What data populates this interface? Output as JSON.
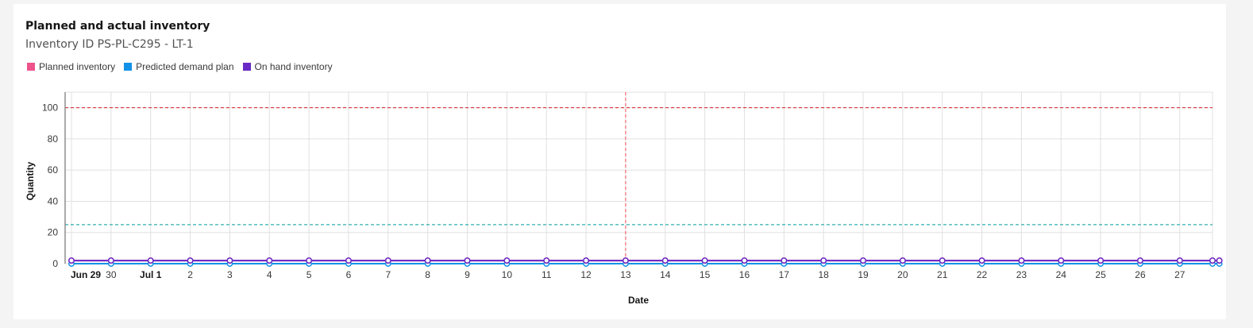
{
  "card": {
    "title": "Planned and actual inventory",
    "subtitle": "Inventory ID PS-PL-C295 - LT-1"
  },
  "legend": [
    {
      "label": "Planned inventory",
      "color": "#ee538b"
    },
    {
      "label": "Predicted demand plan",
      "color": "#1192e8"
    },
    {
      "label": "On hand inventory",
      "color": "#6929c4"
    }
  ],
  "chart_data": {
    "type": "line",
    "xlabel": "Date",
    "ylabel": "Quantity",
    "ylim": [
      0,
      110
    ],
    "yticks": [
      0,
      20,
      40,
      60,
      80,
      100
    ],
    "x_start": "Jun 29",
    "x_tick_labels": [
      {
        "label": "Jun 29",
        "bold": true
      },
      {
        "label": "30",
        "bold": false
      },
      {
        "label": "Jul 1",
        "bold": true
      },
      {
        "label": "2"
      },
      {
        "label": "3"
      },
      {
        "label": "4"
      },
      {
        "label": "5"
      },
      {
        "label": "6"
      },
      {
        "label": "7"
      },
      {
        "label": "8"
      },
      {
        "label": "9"
      },
      {
        "label": "10"
      },
      {
        "label": "11"
      },
      {
        "label": "12"
      },
      {
        "label": "13"
      },
      {
        "label": "14"
      },
      {
        "label": "15"
      },
      {
        "label": "16"
      },
      {
        "label": "17"
      },
      {
        "label": "18"
      },
      {
        "label": "19"
      },
      {
        "label": "20"
      },
      {
        "label": "21"
      },
      {
        "label": "22"
      },
      {
        "label": "23"
      },
      {
        "label": "24"
      },
      {
        "label": "25"
      },
      {
        "label": "26"
      },
      {
        "label": "27"
      }
    ],
    "series": [
      {
        "name": "Planned inventory",
        "color": "#ee538b",
        "values": [
          2,
          2,
          2,
          2,
          2,
          2,
          2,
          2,
          2,
          2,
          2,
          2,
          2,
          2,
          2,
          2,
          2,
          2,
          2,
          2,
          2,
          2,
          2,
          2,
          2,
          2,
          2,
          2,
          2,
          2
        ]
      },
      {
        "name": "Predicted demand plan",
        "color": "#1192e8",
        "values": [
          0,
          0,
          0,
          0,
          0,
          0,
          0,
          0,
          0,
          0,
          0,
          0,
          0,
          0,
          0,
          0,
          0,
          0,
          0,
          0,
          0,
          0,
          0,
          0,
          0,
          0,
          0,
          0,
          0,
          0
        ]
      },
      {
        "name": "On hand inventory",
        "color": "#6929c4",
        "values": [
          2,
          2,
          2,
          2,
          2,
          2,
          2,
          2,
          2,
          2,
          2,
          2,
          2,
          2,
          2,
          2,
          2,
          2,
          2,
          2,
          2,
          2,
          2,
          2,
          2,
          2,
          2,
          2,
          2,
          2
        ]
      }
    ],
    "thresholds": [
      {
        "value": 100,
        "color": "#da1e28",
        "style": "dashed"
      },
      {
        "value": 25,
        "color": "#009d9a",
        "style": "dashed"
      }
    ],
    "vertical_marker": {
      "x_label": "13",
      "color": "#fa4d56",
      "style": "dashed"
    },
    "grid": true
  }
}
